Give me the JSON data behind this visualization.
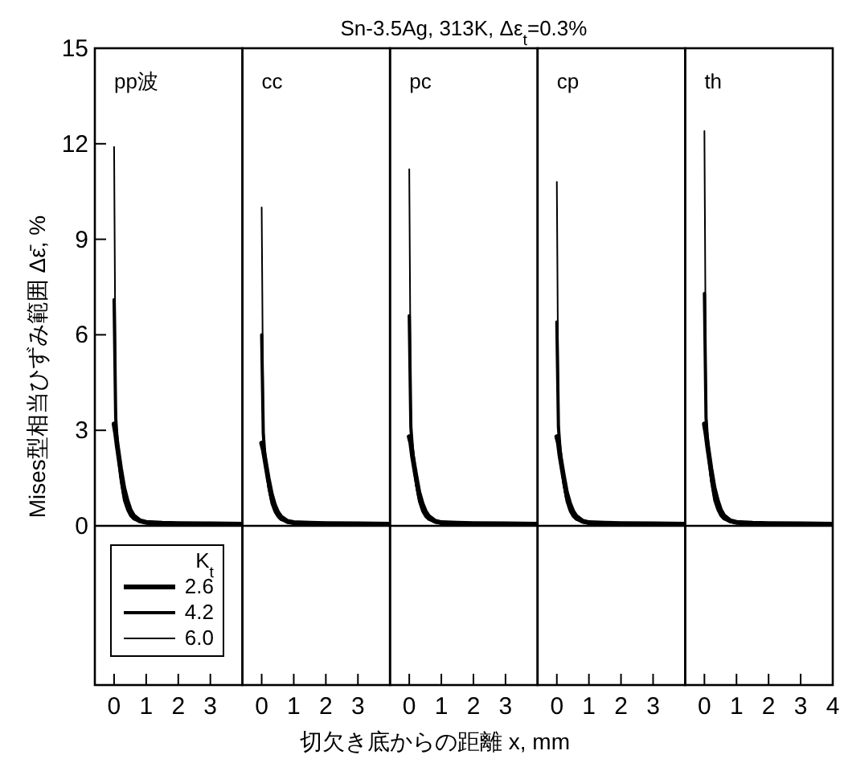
{
  "chart_data": [
    {
      "type": "line",
      "ylabel": "Mises型相当ひずみ範囲  Δε̄, %",
      "annotations": [
        "pp波"
      ],
      "legend": "bottom left",
      "legend_title": "K$_{t}$",
      "xlim": [
        -0.6,
        4
      ],
      "xticks": [
        0,
        1,
        2,
        3
      ],
      "ylim": [
        -5,
        15
      ],
      "yticks": [
        0,
        3,
        6,
        9,
        12,
        15
      ],
      "grid": false,
      "ref_lines": [
        {
          "axis": "y",
          "value": 0,
          "label": null
        }
      ],
      "x": [
        0,
        0.05,
        0.1,
        0.2,
        0.3,
        0.4,
        0.5,
        0.6,
        0.8,
        1.0,
        1.5,
        2,
        3,
        4
      ],
      "series": [
        {
          "name": "2.6",
          "color": "#000000",
          "values": [
            3.2,
            2.9,
            2.5,
            1.8,
            1.2,
            0.8,
            0.5,
            0.32,
            0.16,
            0.11,
            0.08,
            0.07,
            0.06,
            0.05
          ]
        },
        {
          "name": "4.2",
          "color": "#000000",
          "values": [
            7.1,
            3.4,
            2.6,
            1.6,
            1.0,
            0.6,
            0.38,
            0.24,
            0.13,
            0.1,
            0.08,
            0.07,
            0.06,
            0.05
          ]
        },
        {
          "name": "6.0",
          "color": "#000000",
          "values": [
            11.9,
            3.7,
            2.6,
            1.4,
            0.8,
            0.5,
            0.3,
            0.2,
            0.12,
            0.09,
            0.07,
            0.06,
            0.05,
            0.05
          ]
        }
      ]
    },
    {
      "type": "line",
      "annotations": [
        "cc"
      ],
      "tick_labels": "x",
      "xlim": [
        -0.6,
        4
      ],
      "xticks": [
        0,
        1,
        2,
        3
      ],
      "ylim": [
        -5,
        15
      ],
      "grid": false,
      "ref_lines": [
        {
          "axis": "y",
          "value": 0,
          "label": null
        }
      ],
      "x": [
        0,
        0.05,
        0.1,
        0.2,
        0.3,
        0.4,
        0.5,
        0.6,
        0.8,
        1.0,
        1.5,
        2,
        3,
        4
      ],
      "series": [
        {
          "color": "#000000",
          "values": [
            2.6,
            2.4,
            2.1,
            1.5,
            1.0,
            0.65,
            0.42,
            0.28,
            0.14,
            0.1,
            0.08,
            0.07,
            0.06,
            0.05
          ]
        },
        {
          "color": "#000000",
          "values": [
            6.0,
            2.9,
            2.2,
            1.4,
            0.85,
            0.52,
            0.33,
            0.21,
            0.12,
            0.09,
            0.08,
            0.07,
            0.06,
            0.05
          ]
        },
        {
          "color": "#000000",
          "values": [
            10.0,
            3.1,
            2.2,
            1.2,
            0.7,
            0.43,
            0.27,
            0.18,
            0.11,
            0.08,
            0.07,
            0.06,
            0.05,
            0.05
          ]
        }
      ]
    },
    {
      "type": "line",
      "title": "Sn-3.5Ag,  313K,  Δε$_{t}$=0.3%",
      "xlabel": "切欠き底からの距離  x, mm",
      "annotations": [
        "pc"
      ],
      "tick_labels": "x",
      "xlim": [
        -0.6,
        4
      ],
      "xticks": [
        0,
        1,
        2,
        3
      ],
      "ylim": [
        -5,
        15
      ],
      "grid": false,
      "ref_lines": [
        {
          "axis": "y",
          "value": 0,
          "label": null
        }
      ],
      "x": [
        0,
        0.05,
        0.1,
        0.2,
        0.3,
        0.4,
        0.5,
        0.6,
        0.8,
        1.0,
        1.5,
        2,
        3,
        4
      ],
      "series": [
        {
          "color": "#000000",
          "values": [
            2.8,
            2.6,
            2.2,
            1.6,
            1.05,
            0.7,
            0.45,
            0.3,
            0.15,
            0.1,
            0.08,
            0.07,
            0.06,
            0.05
          ]
        },
        {
          "color": "#000000",
          "values": [
            6.6,
            3.1,
            2.4,
            1.5,
            0.9,
            0.55,
            0.35,
            0.22,
            0.12,
            0.09,
            0.08,
            0.07,
            0.06,
            0.05
          ]
        },
        {
          "color": "#000000",
          "values": [
            11.2,
            3.3,
            2.4,
            1.3,
            0.75,
            0.45,
            0.28,
            0.19,
            0.11,
            0.08,
            0.07,
            0.06,
            0.05,
            0.05
          ]
        }
      ]
    },
    {
      "type": "line",
      "annotations": [
        "cp"
      ],
      "tick_labels": "x",
      "xlim": [
        -0.6,
        4
      ],
      "xticks": [
        0,
        1,
        2,
        3
      ],
      "ylim": [
        -5,
        15
      ],
      "grid": false,
      "ref_lines": [
        {
          "axis": "y",
          "value": 0,
          "label": null
        }
      ],
      "x": [
        0,
        0.05,
        0.1,
        0.2,
        0.3,
        0.4,
        0.5,
        0.6,
        0.8,
        1.0,
        1.5,
        2,
        3,
        4
      ],
      "series": [
        {
          "color": "#000000",
          "values": [
            2.8,
            2.6,
            2.2,
            1.6,
            1.05,
            0.7,
            0.45,
            0.3,
            0.15,
            0.1,
            0.08,
            0.07,
            0.06,
            0.05
          ]
        },
        {
          "color": "#000000",
          "values": [
            6.4,
            3.1,
            2.4,
            1.5,
            0.9,
            0.55,
            0.35,
            0.22,
            0.12,
            0.09,
            0.08,
            0.07,
            0.06,
            0.05
          ]
        },
        {
          "color": "#000000",
          "values": [
            10.8,
            3.3,
            2.4,
            1.3,
            0.75,
            0.45,
            0.28,
            0.19,
            0.11,
            0.08,
            0.07,
            0.06,
            0.05,
            0.05
          ]
        }
      ]
    },
    {
      "type": "line",
      "annotations": [
        "th"
      ],
      "tick_labels": "x",
      "xlim": [
        -0.6,
        4
      ],
      "xticks": [
        0,
        1,
        2,
        3,
        4
      ],
      "ylim": [
        -5,
        15
      ],
      "grid": false,
      "ref_lines": [
        {
          "axis": "y",
          "value": 0,
          "label": null
        }
      ],
      "x": [
        0,
        0.05,
        0.1,
        0.2,
        0.3,
        0.4,
        0.5,
        0.6,
        0.8,
        1.0,
        1.5,
        2,
        3,
        4
      ],
      "series": [
        {
          "color": "#000000",
          "values": [
            3.2,
            2.9,
            2.5,
            1.8,
            1.2,
            0.8,
            0.5,
            0.32,
            0.16,
            0.11,
            0.08,
            0.07,
            0.06,
            0.05
          ]
        },
        {
          "color": "#000000",
          "values": [
            7.3,
            3.4,
            2.6,
            1.6,
            1.0,
            0.6,
            0.38,
            0.24,
            0.13,
            0.1,
            0.08,
            0.07,
            0.06,
            0.05
          ]
        },
        {
          "color": "#000000",
          "values": [
            12.4,
            3.7,
            2.6,
            1.4,
            0.8,
            0.5,
            0.3,
            0.2,
            0.12,
            0.09,
            0.07,
            0.06,
            0.05,
            0.05
          ]
        }
      ]
    }
  ]
}
